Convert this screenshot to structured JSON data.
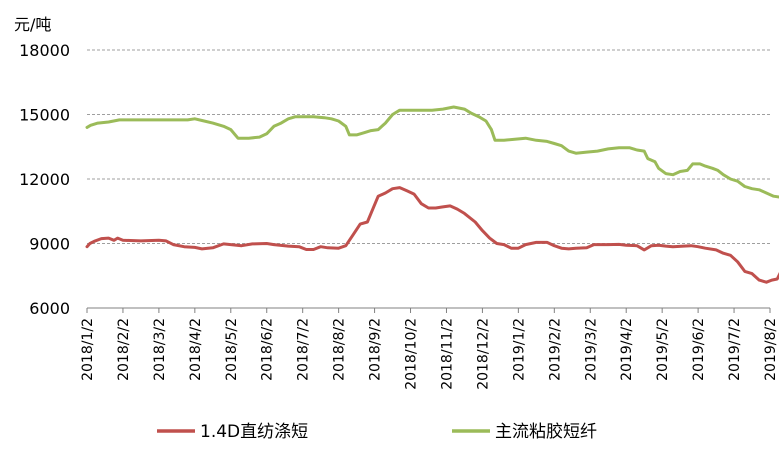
{
  "chart_data": {
    "type": "line",
    "unit_label": "元/吨",
    "ylim": [
      6000,
      18000
    ],
    "yticks": [
      "6000",
      "9000",
      "12000",
      "15000",
      "18000"
    ],
    "ytick_values": [
      6000,
      9000,
      12000,
      15000,
      18000
    ],
    "grid": "horizontal dashed",
    "legend_position": "bottom",
    "categories": [
      "2018/1/2",
      "2018/2/2",
      "2018/3/2",
      "2018/4/2",
      "2018/5/2",
      "2018/6/2",
      "2018/7/2",
      "2018/8/2",
      "2018/9/2",
      "2018/10/2",
      "2018/11/2",
      "2018/12/2",
      "2019/1/2",
      "2019/2/2",
      "2019/3/2",
      "2019/4/2",
      "2019/5/2",
      "2019/6/2",
      "2019/7/2",
      "2019/8/2"
    ],
    "series": [
      {
        "name": "1.4D直纺涤短",
        "color": "#c0504d",
        "points": [
          [
            0,
            8850
          ],
          [
            0.08,
            9000
          ],
          [
            0.2,
            9100
          ],
          [
            0.4,
            9230
          ],
          [
            0.6,
            9250
          ],
          [
            0.75,
            9150
          ],
          [
            0.85,
            9250
          ],
          [
            1.0,
            9150
          ],
          [
            1.5,
            9120
          ],
          [
            2.0,
            9150
          ],
          [
            2.2,
            9120
          ],
          [
            2.4,
            8950
          ],
          [
            2.7,
            8850
          ],
          [
            3.0,
            8820
          ],
          [
            3.2,
            8750
          ],
          [
            3.5,
            8800
          ],
          [
            3.8,
            8980
          ],
          [
            4.0,
            8950
          ],
          [
            4.3,
            8900
          ],
          [
            4.6,
            8980
          ],
          [
            5.0,
            9000
          ],
          [
            5.2,
            8950
          ],
          [
            5.6,
            8880
          ],
          [
            5.9,
            8850
          ],
          [
            6.1,
            8720
          ],
          [
            6.3,
            8720
          ],
          [
            6.5,
            8850
          ],
          [
            6.7,
            8800
          ],
          [
            7.0,
            8780
          ],
          [
            7.2,
            8900
          ],
          [
            7.4,
            9400
          ],
          [
            7.6,
            9900
          ],
          [
            7.8,
            10000
          ],
          [
            7.95,
            10600
          ],
          [
            8.1,
            11200
          ],
          [
            8.3,
            11350
          ],
          [
            8.5,
            11550
          ],
          [
            8.7,
            11600
          ],
          [
            8.9,
            11450
          ],
          [
            9.1,
            11300
          ],
          [
            9.3,
            10850
          ],
          [
            9.5,
            10650
          ],
          [
            9.7,
            10650
          ],
          [
            9.9,
            10700
          ],
          [
            10.1,
            10750
          ],
          [
            10.3,
            10600
          ],
          [
            10.5,
            10400
          ],
          [
            10.8,
            10000
          ],
          [
            11.0,
            9600
          ],
          [
            11.2,
            9250
          ],
          [
            11.4,
            9000
          ],
          [
            11.6,
            8950
          ],
          [
            11.8,
            8780
          ],
          [
            12.0,
            8780
          ],
          [
            12.2,
            8950
          ],
          [
            12.5,
            9050
          ],
          [
            12.8,
            9050
          ],
          [
            13.0,
            8900
          ],
          [
            13.2,
            8780
          ],
          [
            13.4,
            8750
          ],
          [
            13.6,
            8780
          ],
          [
            13.9,
            8800
          ],
          [
            14.1,
            8950
          ],
          [
            14.5,
            8950
          ],
          [
            14.8,
            8960
          ],
          [
            15.0,
            8920
          ],
          [
            15.3,
            8900
          ],
          [
            15.5,
            8700
          ],
          [
            15.7,
            8900
          ],
          [
            15.9,
            8920
          ],
          [
            16.1,
            8880
          ],
          [
            16.3,
            8850
          ],
          [
            16.6,
            8880
          ],
          [
            16.8,
            8900
          ],
          [
            17.0,
            8850
          ],
          [
            17.2,
            8780
          ],
          [
            17.5,
            8700
          ],
          [
            17.7,
            8550
          ],
          [
            17.9,
            8450
          ],
          [
            18.1,
            8150
          ],
          [
            18.3,
            7700
          ],
          [
            18.5,
            7600
          ],
          [
            18.7,
            7300
          ],
          [
            18.9,
            7200
          ],
          [
            19.05,
            7300
          ],
          [
            19.2,
            7350
          ],
          [
            19.35,
            7850
          ],
          [
            19.5,
            7900
          ],
          [
            19.65,
            8500
          ],
          [
            19.8,
            8700
          ],
          [
            20.0,
            8500
          ],
          [
            20.2,
            8200
          ],
          [
            20.4,
            8100
          ],
          [
            20.6,
            7900
          ],
          [
            20.75,
            7550
          ],
          [
            20.85,
            7300
          ],
          [
            21.0,
            7400
          ]
        ]
      },
      {
        "name": "主流粘胶短纤",
        "color": "#9bbb59",
        "points": [
          [
            0,
            14400
          ],
          [
            0.1,
            14500
          ],
          [
            0.3,
            14600
          ],
          [
            0.6,
            14650
          ],
          [
            0.9,
            14750
          ],
          [
            1.2,
            14750
          ],
          [
            1.6,
            14750
          ],
          [
            2.0,
            14750
          ],
          [
            2.4,
            14750
          ],
          [
            2.8,
            14750
          ],
          [
            3.0,
            14800
          ],
          [
            3.2,
            14720
          ],
          [
            3.5,
            14600
          ],
          [
            3.8,
            14450
          ],
          [
            4.0,
            14300
          ],
          [
            4.2,
            13900
          ],
          [
            4.5,
            13900
          ],
          [
            4.8,
            13950
          ],
          [
            5.0,
            14100
          ],
          [
            5.2,
            14450
          ],
          [
            5.4,
            14600
          ],
          [
            5.6,
            14800
          ],
          [
            5.8,
            14900
          ],
          [
            6.0,
            14900
          ],
          [
            6.3,
            14900
          ],
          [
            6.6,
            14850
          ],
          [
            6.8,
            14800
          ],
          [
            7.0,
            14700
          ],
          [
            7.2,
            14450
          ],
          [
            7.3,
            14050
          ],
          [
            7.5,
            14050
          ],
          [
            7.7,
            14150
          ],
          [
            7.9,
            14250
          ],
          [
            8.1,
            14300
          ],
          [
            8.3,
            14600
          ],
          [
            8.5,
            15000
          ],
          [
            8.7,
            15200
          ],
          [
            9.0,
            15200
          ],
          [
            9.3,
            15200
          ],
          [
            9.6,
            15200
          ],
          [
            9.9,
            15250
          ],
          [
            10.2,
            15350
          ],
          [
            10.5,
            15250
          ],
          [
            10.7,
            15050
          ],
          [
            10.9,
            14900
          ],
          [
            11.1,
            14700
          ],
          [
            11.25,
            14300
          ],
          [
            11.35,
            13800
          ],
          [
            11.6,
            13800
          ],
          [
            11.9,
            13850
          ],
          [
            12.2,
            13900
          ],
          [
            12.5,
            13800
          ],
          [
            12.8,
            13750
          ],
          [
            13.0,
            13650
          ],
          [
            13.2,
            13550
          ],
          [
            13.4,
            13300
          ],
          [
            13.6,
            13200
          ],
          [
            13.9,
            13250
          ],
          [
            14.2,
            13300
          ],
          [
            14.5,
            13400
          ],
          [
            14.8,
            13450
          ],
          [
            15.1,
            13450
          ],
          [
            15.3,
            13350
          ],
          [
            15.5,
            13300
          ],
          [
            15.6,
            12950
          ],
          [
            15.8,
            12800
          ],
          [
            15.9,
            12500
          ],
          [
            16.1,
            12250
          ],
          [
            16.3,
            12200
          ],
          [
            16.5,
            12350
          ],
          [
            16.7,
            12400
          ],
          [
            16.85,
            12700
          ],
          [
            17.05,
            12700
          ],
          [
            17.2,
            12600
          ],
          [
            17.4,
            12500
          ],
          [
            17.55,
            12400
          ],
          [
            17.7,
            12200
          ],
          [
            17.9,
            12000
          ],
          [
            18.1,
            11900
          ],
          [
            18.3,
            11650
          ],
          [
            18.5,
            11550
          ],
          [
            18.7,
            11500
          ],
          [
            18.9,
            11350
          ],
          [
            19.1,
            11200
          ],
          [
            19.3,
            11150
          ],
          [
            19.5,
            11350
          ],
          [
            19.7,
            11600
          ],
          [
            19.85,
            11900
          ],
          [
            20.0,
            11950
          ],
          [
            20.3,
            11950
          ],
          [
            20.6,
            11900
          ],
          [
            20.8,
            11800
          ],
          [
            21.0,
            11750
          ]
        ]
      }
    ]
  }
}
